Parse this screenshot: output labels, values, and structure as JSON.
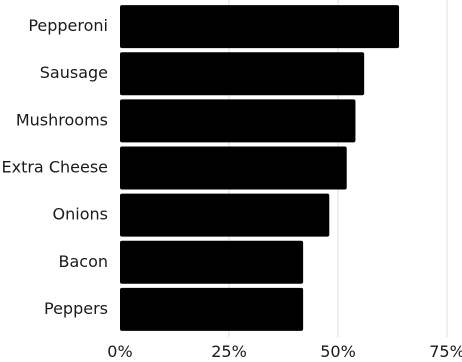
{
  "chart_data": {
    "type": "bar",
    "orientation": "horizontal",
    "title": "",
    "xlabel": "",
    "ylabel": "",
    "categories": [
      "Pepperoni",
      "Sausage",
      "Mushrooms",
      "Extra Cheese",
      "Onions",
      "Bacon",
      "Peppers"
    ],
    "values": [
      64,
      56,
      54,
      52,
      48,
      42,
      42
    ],
    "value_unit": "percent",
    "xlim": [
      0,
      75
    ],
    "xticks": [
      {
        "value": 0,
        "label": "0%"
      },
      {
        "value": 25,
        "label": "25%"
      },
      {
        "value": 50,
        "label": "50%"
      },
      {
        "value": 75,
        "label": "75%"
      }
    ],
    "grid": "vertical",
    "legend": "none",
    "bar_color": "#000000",
    "grid_color": "#dcdcdc",
    "text_color": "#1a1a1a"
  }
}
